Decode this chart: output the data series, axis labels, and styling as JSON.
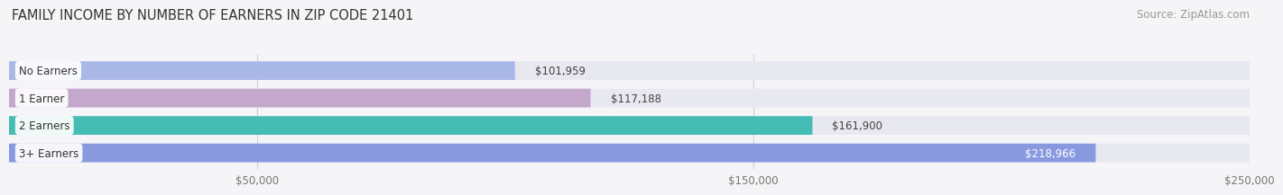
{
  "title": "FAMILY INCOME BY NUMBER OF EARNERS IN ZIP CODE 21401",
  "source": "Source: ZipAtlas.com",
  "categories": [
    "No Earners",
    "1 Earner",
    "2 Earners",
    "3+ Earners"
  ],
  "values": [
    101959,
    117188,
    161900,
    218966
  ],
  "labels": [
    "$101,959",
    "$117,188",
    "$161,900",
    "$218,966"
  ],
  "bar_colors": [
    "#aab8e8",
    "#c4a8cc",
    "#45bdb5",
    "#8899df"
  ],
  "bar_bg_color": "#e8e8f0",
  "xlim": [
    0,
    250000
  ],
  "xmin": 0,
  "xmax": 250000,
  "xticks": [
    50000,
    150000,
    250000
  ],
  "xtick_labels": [
    "$50,000",
    "$150,000",
    "$250,000"
  ],
  "background_color": "#f5f5f8",
  "title_fontsize": 10.5,
  "source_fontsize": 8.5,
  "label_fontsize": 8.5,
  "cat_fontsize": 8.5,
  "label_inside_threshold": 180000,
  "label_inside_colors": [
    "#444444",
    "#444444",
    "#444444",
    "#ffffff"
  ]
}
